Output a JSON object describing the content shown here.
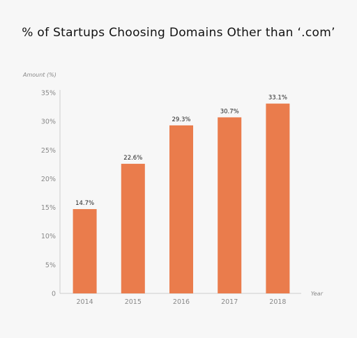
{
  "colors": {
    "bar": "#ea7c4c",
    "axis": "#cccccc",
    "text": "#111111",
    "muted": "#888888",
    "background": "#f7f7f7"
  },
  "chart_data": {
    "type": "bar",
    "title": "% of Startups Choosing Domains Other than ‘.com’",
    "xlabel": "Year",
    "ylabel": "Amount (%)",
    "categories": [
      "2014",
      "2015",
      "2016",
      "2017",
      "2018"
    ],
    "values": [
      14.7,
      22.6,
      29.3,
      30.7,
      33.1
    ],
    "data_labels": [
      "14.7%",
      "22.6%",
      "29.3%",
      "30.7%",
      "33.1%"
    ],
    "ylim": [
      0,
      35
    ],
    "yticks": [
      0,
      5,
      10,
      15,
      20,
      25,
      30,
      35
    ],
    "ytick_labels": [
      "0",
      "5%",
      "10%",
      "15%",
      "20%",
      "25%",
      "30%",
      "35%"
    ],
    "grid": false,
    "legend": "none"
  }
}
